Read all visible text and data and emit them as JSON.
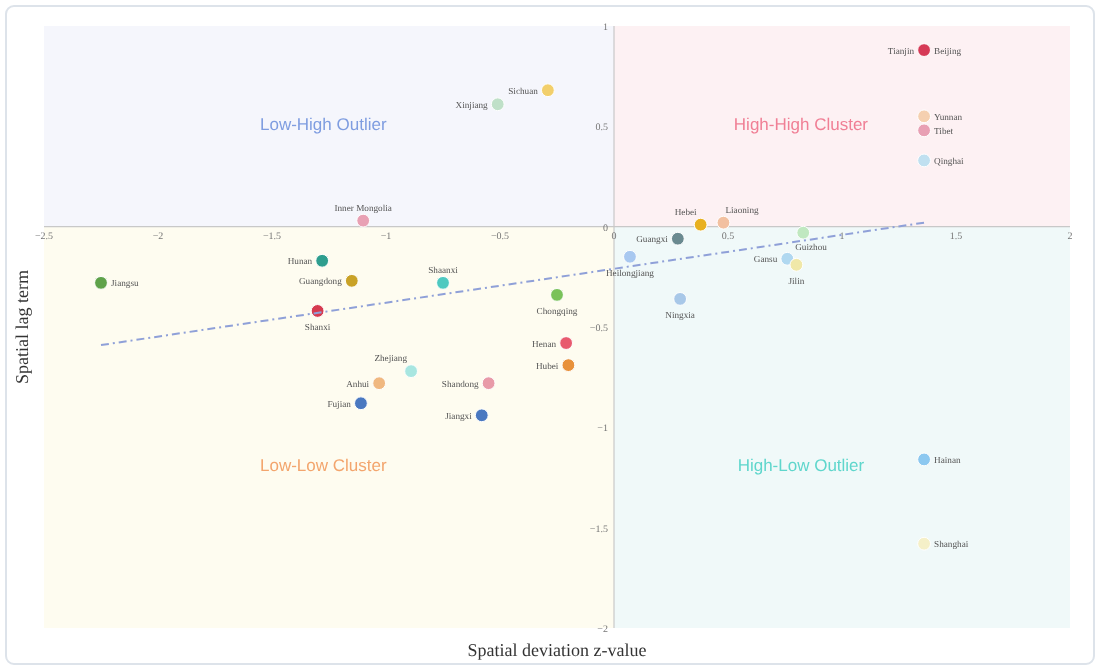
{
  "chart_data": {
    "type": "scatter",
    "xlabel": "Spatial deviation z-value",
    "ylabel": "Spatial lag term",
    "xlim": [
      -2.5,
      2
    ],
    "ylim": [
      -2,
      1
    ],
    "xticks": [
      -2.5,
      -2,
      -1.5,
      -1,
      -0.5,
      0,
      0.5,
      1,
      1.5,
      2
    ],
    "yticks": [
      -2,
      -1.5,
      -1,
      -0.5,
      0,
      0.5,
      1
    ],
    "grid": false,
    "marker": "circle",
    "annotations": [
      "Low-High Outlier",
      "High-High Cluster",
      "Low-Low Cluster",
      "High-Low Outlier",
      {
        "text": "Tianjin",
        "x": 1.36,
        "y": 0.88
      }
    ],
    "series": [
      {
        "name": "Sichuan",
        "color": "#f2cf6b",
        "x": [
          -0.29
        ],
        "values": [
          0.68
        ]
      },
      {
        "name": "Xinjiang",
        "color": "#bfe0c8",
        "x": [
          -0.51
        ],
        "values": [
          0.61
        ]
      },
      {
        "name": "Inner Mongolia",
        "color": "#e8a0b4",
        "x": [
          -1.1
        ],
        "values": [
          0.03
        ]
      },
      {
        "name": "Jiangsu",
        "color": "#5fa24a",
        "x": [
          -2.25
        ],
        "values": [
          -0.28
        ]
      },
      {
        "name": "Hunan",
        "color": "#2e9e8e",
        "x": [
          -1.28
        ],
        "values": [
          -0.17
        ]
      },
      {
        "name": "Guangdong",
        "color": "#c9a227",
        "x": [
          -1.15
        ],
        "values": [
          -0.27
        ]
      },
      {
        "name": "Shaanxi",
        "color": "#4ec9c0",
        "x": [
          -0.75
        ],
        "values": [
          -0.28
        ]
      },
      {
        "name": "Chongqing",
        "color": "#7ac25a",
        "x": [
          -0.25
        ],
        "values": [
          -0.34
        ]
      },
      {
        "name": "Shanxi",
        "color": "#d63a4f",
        "x": [
          -1.3
        ],
        "values": [
          -0.42
        ]
      },
      {
        "name": "Henan",
        "color": "#e85a6e",
        "x": [
          -0.21
        ],
        "values": [
          -0.58
        ]
      },
      {
        "name": "Hubei",
        "color": "#e8913a",
        "x": [
          -0.2
        ],
        "values": [
          -0.69
        ]
      },
      {
        "name": "Zhejiang",
        "color": "#a8e6e0",
        "x": [
          -0.89
        ],
        "values": [
          -0.72
        ]
      },
      {
        "name": "Anhui",
        "color": "#f0b880",
        "x": [
          -1.03
        ],
        "values": [
          -0.78
        ]
      },
      {
        "name": "Shandong",
        "color": "#e89aa8",
        "x": [
          -0.55
        ],
        "values": [
          -0.78
        ]
      },
      {
        "name": "Fujian",
        "color": "#4a78c0",
        "x": [
          -1.11
        ],
        "values": [
          -0.88
        ]
      },
      {
        "name": "Jiangxi",
        "color": "#4a78c0",
        "x": [
          -0.58
        ],
        "values": [
          -0.94
        ]
      },
      {
        "name": "Beijing",
        "color": "#d63a56",
        "x": [
          1.36
        ],
        "values": [
          0.88
        ]
      },
      {
        "name": "Yunnan",
        "color": "#f5d0b0",
        "x": [
          1.36
        ],
        "values": [
          0.55
        ]
      },
      {
        "name": "Tibet",
        "color": "#e8a0b4",
        "x": [
          1.36
        ],
        "values": [
          0.48
        ]
      },
      {
        "name": "Qinghai",
        "color": "#c0e0f0",
        "x": [
          1.36
        ],
        "values": [
          0.33
        ]
      },
      {
        "name": "Hebei",
        "color": "#e8b020",
        "x": [
          0.38
        ],
        "values": [
          0.01
        ]
      },
      {
        "name": "Liaoning",
        "color": "#f2c0a0",
        "x": [
          0.48
        ],
        "values": [
          0.02
        ]
      },
      {
        "name": "Guangxi",
        "color": "#6a8a90",
        "x": [
          0.28
        ],
        "values": [
          -0.06
        ]
      },
      {
        "name": "Guizhou",
        "color": "#c0e8c0",
        "x": [
          0.83
        ],
        "values": [
          -0.03
        ]
      },
      {
        "name": "Heilongjiang",
        "color": "#a8c8f0",
        "x": [
          0.07
        ],
        "values": [
          -0.15
        ]
      },
      {
        "name": "Gansu",
        "color": "#b0d8f0",
        "x": [
          0.76
        ],
        "values": [
          -0.16
        ]
      },
      {
        "name": "Jilin",
        "color": "#f0e8a8",
        "x": [
          0.8
        ],
        "values": [
          -0.19
        ]
      },
      {
        "name": "Ningxia",
        "color": "#a8c8e8",
        "x": [
          0.29
        ],
        "values": [
          -0.36
        ]
      },
      {
        "name": "Hainan",
        "color": "#8cc8f0",
        "x": [
          1.36
        ],
        "values": [
          -1.16
        ]
      },
      {
        "name": "Shanghai",
        "color": "#f5f0c8",
        "x": [
          1.36
        ],
        "values": [
          -1.58
        ]
      },
      {
        "type": "line",
        "color": "#8fa0d8",
        "line_style": "dashed",
        "marker": "none",
        "x": [
          -2.25,
          1.36
        ],
        "values": [
          -0.59,
          0.02
        ]
      }
    ]
  }
}
